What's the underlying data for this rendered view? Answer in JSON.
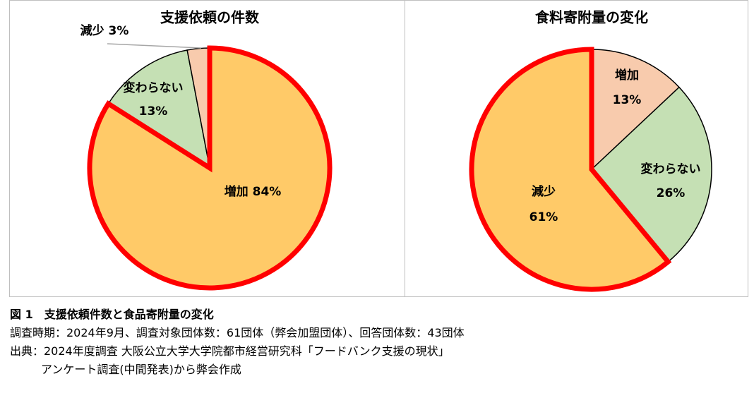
{
  "chart_data": [
    {
      "type": "pie",
      "title": "支援依頼の件数",
      "categories": [
        "増加",
        "変わらない",
        "減少"
      ],
      "values": [
        84,
        13,
        3
      ],
      "value_labels": [
        "84%",
        "13%",
        "3%"
      ],
      "colors": [
        "#FFCA68",
        "#C5E0B4",
        "#F8CBAD"
      ],
      "highlight": 0,
      "highlight_color": "#FF0000"
    },
    {
      "type": "pie",
      "title": "食料寄附量の変化",
      "categories": [
        "増加",
        "変わらない",
        "減少"
      ],
      "values": [
        13,
        26,
        61
      ],
      "value_labels": [
        "13%",
        "26%",
        "61%"
      ],
      "colors": [
        "#F8CBAD",
        "#C5E0B4",
        "#FFCA68"
      ],
      "highlight": 2,
      "highlight_color": "#FF0000"
    }
  ],
  "caption": {
    "title": "図 1　支援依頼件数と食品寄附量の変化",
    "lines": [
      "調査時期：2024年9月、調査対象団体数：61団体（弊会加盟団体）、回答団体数：43団体",
      "出典：2024年度調査 大阪公立大学大学院都市経営研究科「フードバンク支援の現状」",
      "アンケート調査(中間発表)から弊会作成"
    ]
  }
}
